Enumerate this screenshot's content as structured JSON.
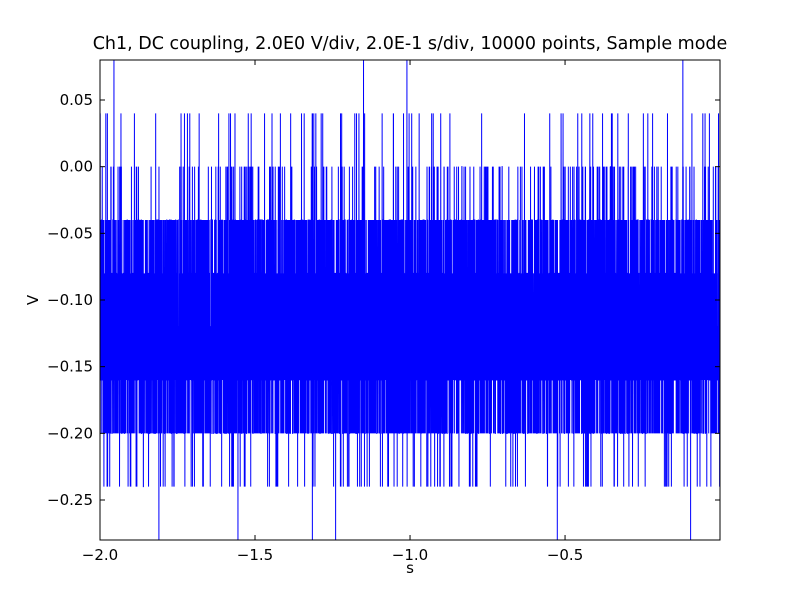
{
  "chart_data": {
    "type": "line",
    "title": "Ch1, DC coupling, 2.0E0 V/div, 2.0E-1 s/div, 10000 points, Sample mode",
    "xlabel": "s",
    "ylabel": "V",
    "xlim": [
      -2.0,
      -0.0002
    ],
    "ylim": [
      -0.28,
      0.08
    ],
    "xticks": [
      -2.0,
      -1.5,
      -1.0,
      -0.5
    ],
    "xtick_labels": [
      "−2.0",
      "−1.5",
      "−1.0",
      "−0.5"
    ],
    "yticks": [
      0.05,
      0.0,
      -0.05,
      -0.1,
      -0.15,
      -0.2,
      -0.25
    ],
    "ytick_labels": [
      "0.05",
      "0.00",
      "−0.05",
      "−0.10",
      "−0.15",
      "−0.20",
      "−0.25"
    ],
    "grid": false,
    "legend": "none",
    "line_color": "#0000ff",
    "series": [
      {
        "points": 10000,
        "quantization_step": 0.04,
        "levels": [
          -0.28,
          -0.24,
          -0.2,
          -0.16,
          -0.12,
          -0.08,
          -0.04,
          0.0,
          0.04,
          0.08
        ],
        "dominant_range": [
          -0.2,
          -0.04
        ],
        "spikes_high": [
          {
            "x": -1.955,
            "y": 0.08
          },
          {
            "x": -1.15,
            "y": 0.08
          },
          {
            "x": -1.01,
            "y": 0.08
          },
          {
            "x": -0.12,
            "y": 0.08
          }
        ],
        "spikes_low": [
          {
            "x": -1.81,
            "y": -0.28
          },
          {
            "x": -1.555,
            "y": -0.28
          },
          {
            "x": -1.315,
            "y": -0.28
          },
          {
            "x": -1.24,
            "y": -0.28
          },
          {
            "x": -0.525,
            "y": -0.28
          },
          {
            "x": -0.095,
            "y": -0.28
          }
        ]
      }
    ]
  }
}
